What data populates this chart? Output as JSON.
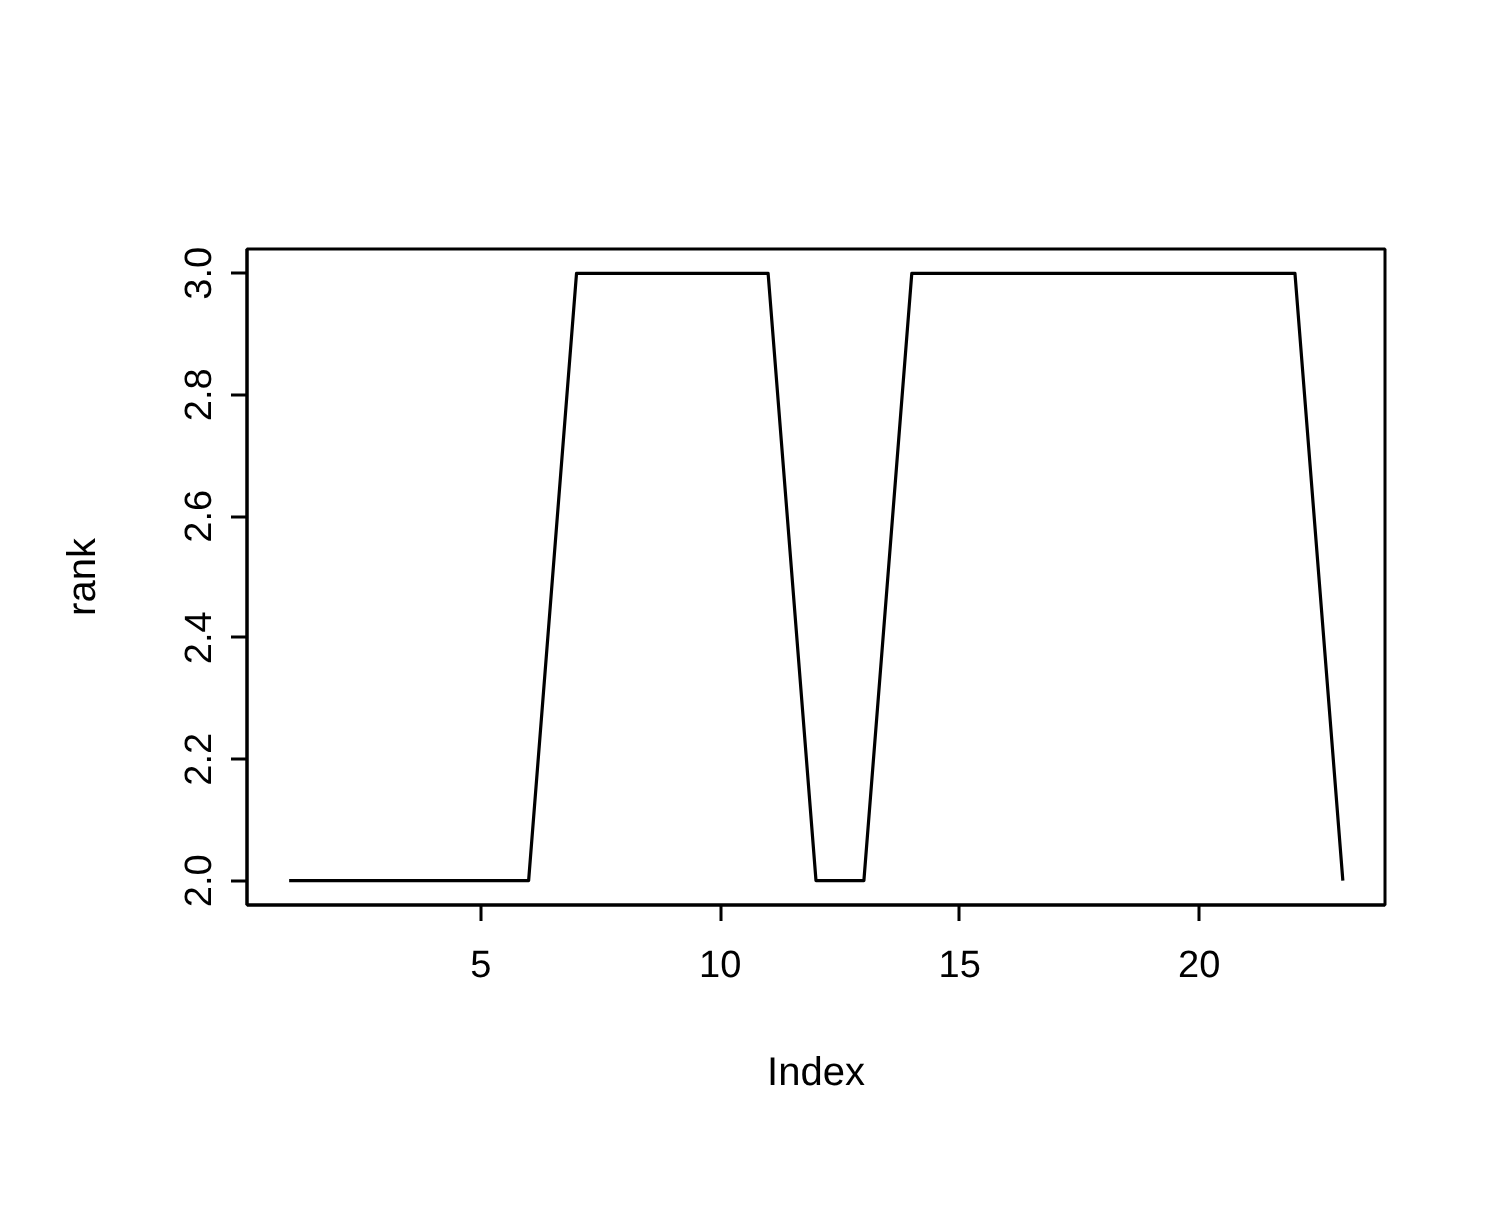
{
  "chart_data": {
    "type": "line",
    "xlabel": "Index",
    "ylabel": "rank",
    "x": [
      1,
      2,
      3,
      4,
      5,
      6,
      7,
      8,
      9,
      10,
      11,
      12,
      13,
      14,
      15,
      16,
      17,
      18,
      19,
      20,
      21,
      22,
      23
    ],
    "series": [
      {
        "color": "#000000",
        "values": [
          2,
          2,
          2,
          2,
          2,
          2,
          3,
          3,
          3,
          3,
          3,
          2,
          2,
          3,
          3,
          3,
          3,
          3,
          3,
          3,
          3,
          3,
          2
        ]
      }
    ],
    "xlim": [
      0.12,
      23.88
    ],
    "ylim": [
      1.96,
      3.04
    ],
    "xticks": [
      5,
      10,
      15,
      20
    ],
    "yticks": [
      {
        "value": 2,
        "label": "2.0"
      },
      2.2,
      2.4,
      2.6,
      2.8,
      {
        "value": 3,
        "label": "3.0"
      }
    ],
    "line_style": "solid"
  }
}
